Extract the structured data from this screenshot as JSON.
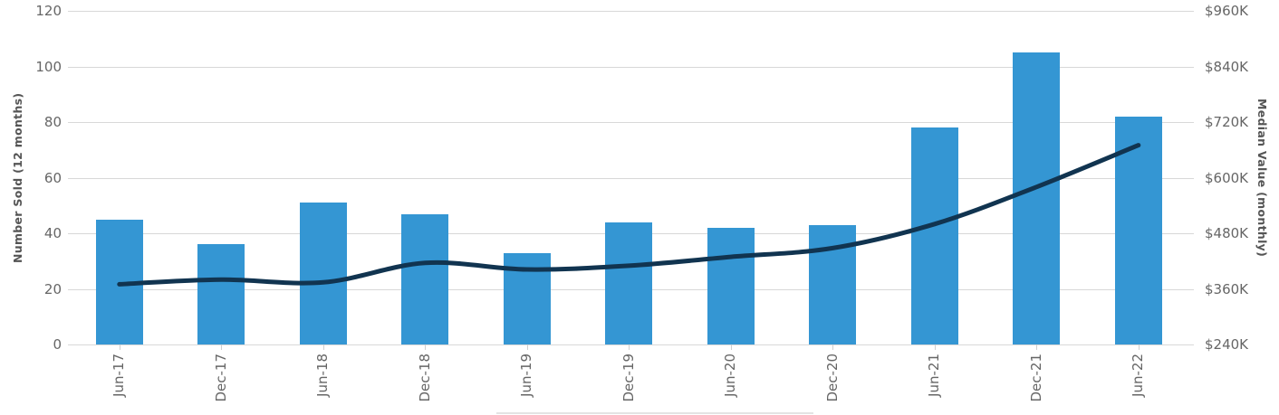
{
  "chart_data": {
    "type": "bar+line",
    "categories": [
      "Jun-17",
      "Dec-17",
      "Jun-18",
      "Dec-18",
      "Jun-19",
      "Dec-19",
      "Jun-20",
      "Dec-20",
      "Jun-21",
      "Dec-21",
      "Jun-22"
    ],
    "series": [
      {
        "name": "Number Sold",
        "type": "bar",
        "y_axis": "left",
        "color": "#3496d3",
        "values": [
          45,
          36,
          51,
          47,
          33,
          44,
          42,
          43,
          78,
          105,
          82
        ]
      },
      {
        "name": "Median Value",
        "type": "line",
        "y_axis": "right",
        "color": "#113450",
        "values_usd_thousands": [
          370,
          380,
          374,
          416,
          402,
          410,
          429,
          448,
          500,
          580,
          670
        ]
      }
    ],
    "left_axis": {
      "label": "Number Sold (12 months)",
      "min": 0,
      "max": 120,
      "tick_labels": [
        "0",
        "20",
        "40",
        "60",
        "80",
        "100",
        "120"
      ]
    },
    "right_axis": {
      "label": "Median Value (monthly)",
      "min_usd_thousands": 240,
      "max_usd_thousands": 960,
      "tick_labels": [
        "$240K",
        "$360K",
        "$480K",
        "$600K",
        "$720K",
        "$840K",
        "$960K"
      ]
    },
    "x_axis": {
      "tick_label_rotation_deg": -90
    },
    "layout_hints": {
      "grid_horizontal": true,
      "grid_vertical": false,
      "legend": "cut off at bottom edge (only top border line visible)"
    },
    "colors": {
      "bar": "#3496d3",
      "line": "#113450",
      "gridline": "#d8d8d8",
      "tick_text": "#666666",
      "axis_title_text": "#555555"
    }
  }
}
